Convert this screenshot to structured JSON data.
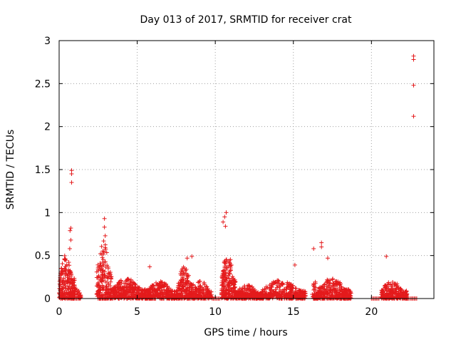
{
  "chart_data": {
    "type": "scatter",
    "title": "Day 013 of 2017, SRMTID for receiver crat",
    "xlabel": "GPS time / hours",
    "ylabel": "SRMTID / TECUs",
    "xlim": [
      0,
      24
    ],
    "ylim": [
      0,
      3
    ],
    "xticks": [
      0,
      5,
      10,
      15,
      20
    ],
    "xtick_labels": [
      "0",
      "5",
      "10",
      "15",
      "20"
    ],
    "yticks": [
      0,
      0.5,
      1,
      1.5,
      2,
      2.5,
      3
    ],
    "ytick_labels": [
      "0",
      "0.5",
      "1",
      "1.5",
      "2",
      "2.5",
      "3"
    ],
    "grid": true,
    "marker": "+",
    "color": "#e41a1c",
    "clusters": [
      {
        "x_start": 0.0,
        "x_end": 1.0,
        "n": 220,
        "peak": 0.52,
        "seed": 11
      },
      {
        "x_start": 0.9,
        "x_end": 1.4,
        "n": 40,
        "peak": 0.14,
        "seed": 12
      },
      {
        "x_start": 2.4,
        "x_end": 3.4,
        "n": 170,
        "peak": 0.68,
        "seed": 21
      },
      {
        "x_start": 3.4,
        "x_end": 5.6,
        "n": 320,
        "peak": 0.24,
        "seed": 22
      },
      {
        "x_start": 5.6,
        "x_end": 7.6,
        "n": 300,
        "peak": 0.2,
        "seed": 23
      },
      {
        "x_start": 7.6,
        "x_end": 8.6,
        "n": 180,
        "peak": 0.38,
        "seed": 24
      },
      {
        "x_start": 8.6,
        "x_end": 9.8,
        "n": 150,
        "peak": 0.22,
        "seed": 25
      },
      {
        "x_start": 10.4,
        "x_end": 11.3,
        "n": 200,
        "peak": 0.55,
        "seed": 31
      },
      {
        "x_start": 11.3,
        "x_end": 13.0,
        "n": 260,
        "peak": 0.16,
        "seed": 32
      },
      {
        "x_start": 13.0,
        "x_end": 15.8,
        "n": 340,
        "peak": 0.22,
        "seed": 33
      },
      {
        "x_start": 16.2,
        "x_end": 16.6,
        "n": 60,
        "peak": 0.2,
        "seed": 41
      },
      {
        "x_start": 16.6,
        "x_end": 18.7,
        "n": 300,
        "peak": 0.24,
        "seed": 42
      },
      {
        "x_start": 20.6,
        "x_end": 22.3,
        "n": 240,
        "peak": 0.2,
        "seed": 51
      }
    ],
    "zero_segments": [
      [
        0.8,
        1.4
      ],
      [
        2.5,
        3.2
      ],
      [
        5.7,
        6.2
      ],
      [
        9.8,
        10.3
      ],
      [
        16.3,
        16.6
      ],
      [
        20.0,
        20.5
      ],
      [
        22.0,
        22.4
      ],
      [
        22.5,
        22.9
      ]
    ],
    "notable_points": [
      {
        "x": 0.8,
        "y": 1.49
      },
      {
        "x": 0.8,
        "y": 1.45
      },
      {
        "x": 0.8,
        "y": 1.35
      },
      {
        "x": 0.75,
        "y": 0.82
      },
      {
        "x": 0.7,
        "y": 0.79
      },
      {
        "x": 0.75,
        "y": 0.68
      },
      {
        "x": 0.68,
        "y": 0.58
      },
      {
        "x": 2.9,
        "y": 0.93
      },
      {
        "x": 2.9,
        "y": 0.83
      },
      {
        "x": 2.95,
        "y": 0.73
      },
      {
        "x": 2.85,
        "y": 0.67
      },
      {
        "x": 10.7,
        "y": 1.0
      },
      {
        "x": 10.6,
        "y": 0.95
      },
      {
        "x": 10.5,
        "y": 0.89
      },
      {
        "x": 10.65,
        "y": 0.84
      },
      {
        "x": 16.3,
        "y": 0.58
      },
      {
        "x": 16.8,
        "y": 0.65
      },
      {
        "x": 16.8,
        "y": 0.6
      },
      {
        "x": 17.2,
        "y": 0.47
      },
      {
        "x": 8.5,
        "y": 0.49
      },
      {
        "x": 8.2,
        "y": 0.47
      },
      {
        "x": 5.8,
        "y": 0.37
      },
      {
        "x": 15.1,
        "y": 0.39
      },
      {
        "x": 20.95,
        "y": 0.49
      },
      {
        "x": 22.7,
        "y": 2.82
      },
      {
        "x": 22.7,
        "y": 2.78
      },
      {
        "x": 22.7,
        "y": 2.48
      },
      {
        "x": 22.7,
        "y": 2.12
      }
    ]
  }
}
